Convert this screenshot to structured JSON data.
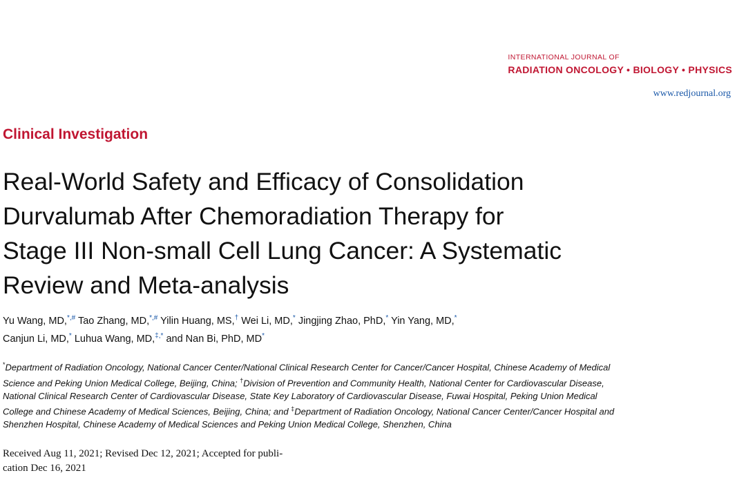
{
  "journal": {
    "name_small": "INTERNATIONAL JOURNAL OF",
    "name_main": "RADIATION ONCOLOGY • BIOLOGY • PHYSICS",
    "url": "www.redjournal.org"
  },
  "section": "Clinical Investigation",
  "title_lines": [
    "Real-World Safety and Efficacy of Consolidation",
    "Durvalumab After Chemoradiation Therapy for",
    "Stage III Non-small Cell Lung Cancer: A Systematic",
    "Review and Meta-analysis"
  ],
  "authors": [
    {
      "name": "Yu Wang, MD,",
      "sup": "*,#"
    },
    {
      "name": "Tao Zhang, MD,",
      "sup": "*,#"
    },
    {
      "name": "Yilin Huang, MS,",
      "sup": "†"
    },
    {
      "name": "Wei Li, MD,",
      "sup": "*"
    },
    {
      "name": "Jingjing Zhao, PhD,",
      "sup": "*"
    },
    {
      "name": "Yin Yang, MD,",
      "sup": "*"
    },
    {
      "name": "Canjun Li, MD,",
      "sup": "*"
    },
    {
      "name": "Luhua Wang, MD,",
      "sup": "‡,*"
    },
    {
      "name": "and Nan Bi, PhD, MD",
      "sup": "*"
    }
  ],
  "affiliations": [
    {
      "mark": "*",
      "text": "Department of Radiation Oncology, National Cancer Center/National Clinical Research Center for Cancer/Cancer Hospital, Chinese Academy of Medical Science and Peking Union Medical College, Beijing, China; "
    },
    {
      "mark": "†",
      "text": "Division of Prevention and Community Health, National Center for Cardiovascular Disease, National Clinical Research Center of Cardiovascular Disease, State Key Laboratory of Cardiovascular Disease, Fuwai Hospital, Peking Union Medical College and Chinese Academy of Medical Sciences, Beijing, China; and "
    },
    {
      "mark": "‡",
      "text": "Department of Radiation Oncology, National Cancer Center/Cancer Hospital and Shenzhen Hospital, Chinese Academy of Medical Sciences and Peking Union Medical College, Shenzhen, China"
    }
  ],
  "dates": {
    "line1": "Received Aug 11, 2021; Revised Dec 12, 2021; Accepted for publi-",
    "line2": "cation Dec 16, 2021"
  },
  "colors": {
    "brand_red": "#c01632",
    "link_blue": "#1a58a8"
  }
}
